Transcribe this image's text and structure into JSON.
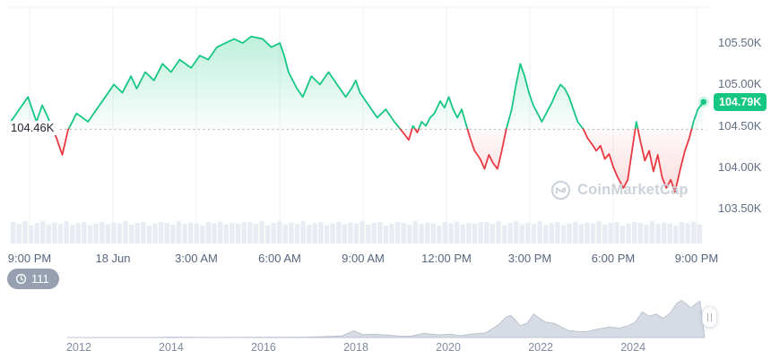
{
  "watermark": {
    "text": "CoinMarketCap"
  },
  "history_badge": {
    "count": "111"
  },
  "colors": {
    "up": "#16c784",
    "down": "#ea3943",
    "badge_bg": "#16c784",
    "grid": "#eff2f5",
    "axis_text": "#616e85",
    "volume": "#e9ecf2",
    "mini_fill": "#d6dbe4",
    "mini_stroke": "#bcc3cf",
    "watermark": "#cbd2da",
    "baseline_line": "#a9b2c1"
  },
  "chart_data": [
    {
      "type": "line",
      "title": "24h price chart",
      "unit": "K USD",
      "baseline": 104.46,
      "baseline_label": "104.46K",
      "current_price": 104.79,
      "current_price_label": "104.79K",
      "x_range_hours": [
        0,
        24.3
      ],
      "ylim": [
        103.37,
        105.75
      ],
      "x_ticks": [
        "9:00 PM",
        "18 Jun",
        "3:00 AM",
        "6:00 AM",
        "9:00 AM",
        "12:00 PM",
        "3:00 PM",
        "6:00 PM",
        "9:00 PM"
      ],
      "y_ticks": [
        {
          "value": 105.5,
          "label": "105.50K"
        },
        {
          "value": 105.0,
          "label": "105.00K"
        },
        {
          "value": 104.5,
          "label": "104.50K"
        },
        {
          "value": 104.0,
          "label": "104.00K"
        },
        {
          "value": 103.5,
          "label": "103.50K"
        }
      ],
      "points": [
        [
          0,
          104.55
        ],
        [
          0.3,
          104.7
        ],
        [
          0.6,
          104.85
        ],
        [
          0.9,
          104.55
        ],
        [
          1.1,
          104.75
        ],
        [
          1.3,
          104.6
        ],
        [
          1.6,
          104.35
        ],
        [
          1.8,
          104.15
        ],
        [
          2,
          104.45
        ],
        [
          2.3,
          104.65
        ],
        [
          2.7,
          104.55
        ],
        [
          3,
          104.7
        ],
        [
          3.3,
          104.85
        ],
        [
          3.6,
          105
        ],
        [
          3.9,
          104.9
        ],
        [
          4.2,
          105.1
        ],
        [
          4.4,
          104.95
        ],
        [
          4.7,
          105.15
        ],
        [
          5,
          105.05
        ],
        [
          5.3,
          105.25
        ],
        [
          5.6,
          105.15
        ],
        [
          5.9,
          105.3
        ],
        [
          6.3,
          105.2
        ],
        [
          6.6,
          105.35
        ],
        [
          6.9,
          105.3
        ],
        [
          7.2,
          105.45
        ],
        [
          7.5,
          105.5
        ],
        [
          7.8,
          105.55
        ],
        [
          8.1,
          105.5
        ],
        [
          8.4,
          105.58
        ],
        [
          8.8,
          105.55
        ],
        [
          9.1,
          105.45
        ],
        [
          9.4,
          105.5
        ],
        [
          9.55,
          105.35
        ],
        [
          9.7,
          105.15
        ],
        [
          10,
          104.95
        ],
        [
          10.2,
          104.85
        ],
        [
          10.5,
          105.1
        ],
        [
          10.8,
          105
        ],
        [
          11.1,
          105.15
        ],
        [
          11.4,
          105
        ],
        [
          11.7,
          104.85
        ],
        [
          11.9,
          104.95
        ],
        [
          12.05,
          105.05
        ],
        [
          12.2,
          104.9
        ],
        [
          12.5,
          104.75
        ],
        [
          12.8,
          104.6
        ],
        [
          13.1,
          104.7
        ],
        [
          13.4,
          104.55
        ],
        [
          13.75,
          104.4
        ],
        [
          13.9,
          104.33
        ],
        [
          14.05,
          104.5
        ],
        [
          14.2,
          104.42
        ],
        [
          14.35,
          104.55
        ],
        [
          14.5,
          104.5
        ],
        [
          14.65,
          104.6
        ],
        [
          14.8,
          104.65
        ],
        [
          15,
          104.8
        ],
        [
          15.15,
          104.72
        ],
        [
          15.3,
          104.85
        ],
        [
          15.45,
          104.7
        ],
        [
          15.6,
          104.6
        ],
        [
          15.75,
          104.7
        ],
        [
          15.9,
          104.52
        ],
        [
          16.05,
          104.35
        ],
        [
          16.2,
          104.2
        ],
        [
          16.4,
          104.1
        ],
        [
          16.55,
          103.98
        ],
        [
          16.7,
          104.15
        ],
        [
          16.85,
          104.05
        ],
        [
          17,
          103.98
        ],
        [
          17.15,
          104.2
        ],
        [
          17.3,
          104.45
        ],
        [
          17.5,
          104.7
        ],
        [
          17.65,
          105
        ],
        [
          17.8,
          105.25
        ],
        [
          17.95,
          105.1
        ],
        [
          18.1,
          104.9
        ],
        [
          18.25,
          104.75
        ],
        [
          18.4,
          104.65
        ],
        [
          18.55,
          104.55
        ],
        [
          18.7,
          104.65
        ],
        [
          18.9,
          104.78
        ],
        [
          19.05,
          104.9
        ],
        [
          19.2,
          105
        ],
        [
          19.35,
          104.95
        ],
        [
          19.5,
          104.85
        ],
        [
          19.65,
          104.7
        ],
        [
          19.8,
          104.55
        ],
        [
          20,
          104.46
        ],
        [
          20.15,
          104.35
        ],
        [
          20.3,
          104.28
        ],
        [
          20.45,
          104.2
        ],
        [
          20.6,
          104.26
        ],
        [
          20.75,
          104.1
        ],
        [
          20.9,
          104.16
        ],
        [
          21.05,
          104
        ],
        [
          21.2,
          103.88
        ],
        [
          21.4,
          103.75
        ],
        [
          21.55,
          103.85
        ],
        [
          21.7,
          104.2
        ],
        [
          21.85,
          104.55
        ],
        [
          22,
          104.3
        ],
        [
          22.15,
          104.08
        ],
        [
          22.3,
          104.2
        ],
        [
          22.45,
          103.95
        ],
        [
          22.6,
          104.15
        ],
        [
          22.75,
          103.88
        ],
        [
          22.9,
          103.75
        ],
        [
          23.05,
          103.85
        ],
        [
          23.2,
          103.7
        ],
        [
          23.4,
          104
        ],
        [
          23.55,
          104.2
        ],
        [
          23.7,
          104.35
        ],
        [
          23.85,
          104.55
        ],
        [
          24,
          104.7
        ],
        [
          24.2,
          104.79
        ]
      ],
      "volume_relative": [
        0.92,
        0.85,
        0.96,
        0.78,
        0.88,
        0.95,
        0.82,
        0.9,
        0.84,
        0.97,
        0.8,
        0.88,
        0.93,
        0.79,
        0.86,
        0.94,
        0.83,
        0.9,
        0.87,
        0.96,
        0.81,
        0.89,
        0.92,
        0.77,
        0.85,
        0.93,
        0.88,
        0.8,
        0.95,
        0.84,
        0.9,
        0.86,
        0.78,
        0.92,
        0.87,
        0.94,
        0.82,
        0.89,
        0.85,
        0.91
      ]
    },
    {
      "type": "area",
      "title": "All-time price timeline",
      "unit": "K USD",
      "x_ticks": [
        "2012",
        "2014",
        "2016",
        "2018",
        "2020",
        "2022",
        "2024"
      ],
      "x_tick_years": [
        2012,
        2014,
        2016,
        2018,
        2020,
        2022,
        2024
      ],
      "year_range": [
        2011.75,
        2025.55
      ],
      "value_range": [
        0,
        110
      ],
      "points": [
        [
          2011.8,
          0.01
        ],
        [
          2012.5,
          0.01
        ],
        [
          2013,
          0.05
        ],
        [
          2013.6,
          0.12
        ],
        [
          2013.95,
          1.1
        ],
        [
          2014.3,
          0.5
        ],
        [
          2014.8,
          0.35
        ],
        [
          2015.2,
          0.25
        ],
        [
          2015.8,
          0.4
        ],
        [
          2016.4,
          0.6
        ],
        [
          2016.9,
          0.9
        ],
        [
          2017.3,
          2.5
        ],
        [
          2017.7,
          4.5
        ],
        [
          2017.95,
          19.4
        ],
        [
          2018.15,
          8.5
        ],
        [
          2018.4,
          9
        ],
        [
          2018.75,
          6.5
        ],
        [
          2018.95,
          3.7
        ],
        [
          2019.2,
          4
        ],
        [
          2019.5,
          12.5
        ],
        [
          2019.55,
          10.5
        ],
        [
          2019.8,
          7.5
        ],
        [
          2020.05,
          9.5
        ],
        [
          2020.25,
          5
        ],
        [
          2020.5,
          9.5
        ],
        [
          2020.8,
          13
        ],
        [
          2021,
          29
        ],
        [
          2021.1,
          38
        ],
        [
          2021.25,
          58
        ],
        [
          2021.35,
          63.5
        ],
        [
          2021.45,
          50
        ],
        [
          2021.55,
          34
        ],
        [
          2021.7,
          40
        ],
        [
          2021.85,
          67
        ],
        [
          2021.95,
          57
        ],
        [
          2022.1,
          44
        ],
        [
          2022.3,
          40
        ],
        [
          2022.45,
          30
        ],
        [
          2022.6,
          20
        ],
        [
          2022.85,
          16.5
        ],
        [
          2023,
          16.8
        ],
        [
          2023.2,
          23
        ],
        [
          2023.5,
          30
        ],
        [
          2023.7,
          26.5
        ],
        [
          2023.9,
          34
        ],
        [
          2024.05,
          44
        ],
        [
          2024.2,
          73
        ],
        [
          2024.35,
          61
        ],
        [
          2024.5,
          67
        ],
        [
          2024.65,
          55
        ],
        [
          2024.8,
          69
        ],
        [
          2024.95,
          98
        ],
        [
          2025.05,
          106
        ],
        [
          2025.15,
          97
        ],
        [
          2025.25,
          84
        ],
        [
          2025.35,
          95
        ],
        [
          2025.45,
          104.5
        ]
      ]
    }
  ]
}
